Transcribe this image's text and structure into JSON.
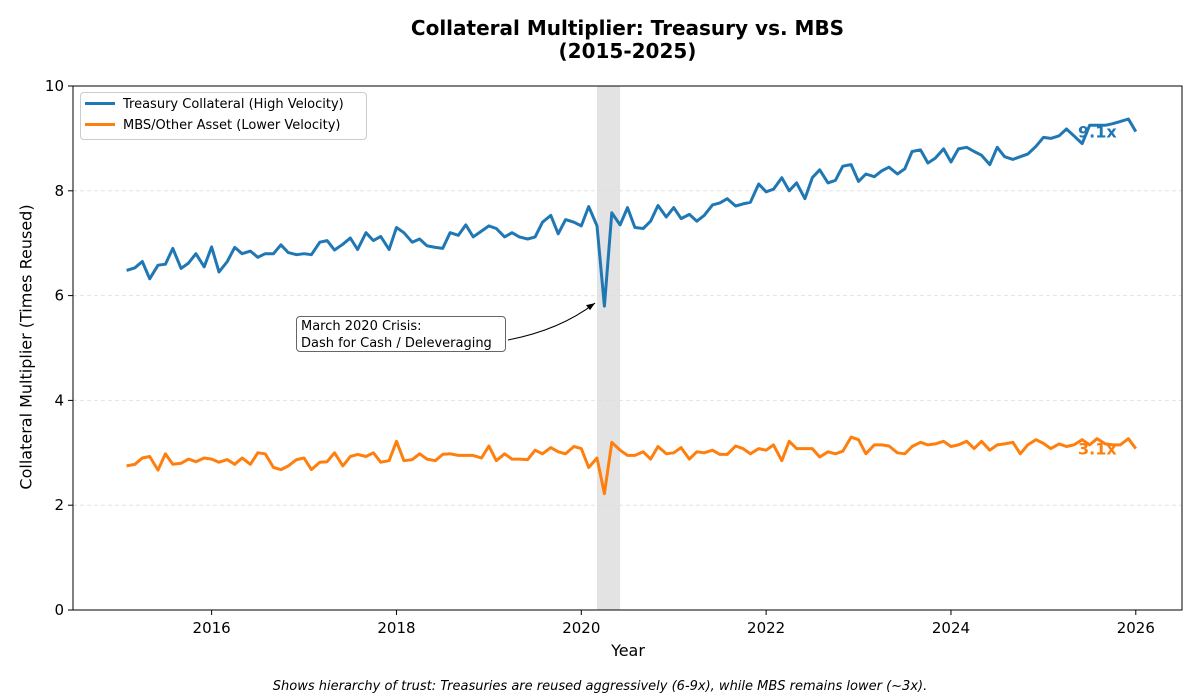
{
  "chart_data": {
    "type": "line",
    "title_line1": "Collateral Multiplier: Treasury vs. MBS",
    "title_line2": "(2015-2025)",
    "xlabel": "Year",
    "ylabel": "Collateral Multiplier (Times Reused)",
    "xlim": [
      2014.5,
      2026.5
    ],
    "ylim": [
      0,
      10
    ],
    "xticks": [
      2016,
      2018,
      2020,
      2022,
      2024,
      2026
    ],
    "yticks": [
      0,
      2,
      4,
      6,
      8,
      10
    ],
    "grid": "y-dashed",
    "legend_position": "top-left",
    "shaded_region": {
      "x_start": 2020.17,
      "x_end": 2020.42,
      "label": "March 2020 crisis window"
    },
    "annotation": {
      "line1": "March 2020 Crisis:",
      "line2": "Dash for Cash / Deleveraging",
      "target": [
        2020.17,
        5.8
      ]
    },
    "caption": "Shows hierarchy of trust: Treasuries are reused aggressively (6-9x), while MBS remains lower (~3x).",
    "x": [
      2015.08,
      2015.17,
      2015.25,
      2015.33,
      2015.42,
      2015.5,
      2015.58,
      2015.67,
      2015.75,
      2015.83,
      2015.92,
      2016.0,
      2016.08,
      2016.17,
      2016.25,
      2016.33,
      2016.42,
      2016.5,
      2016.58,
      2016.67,
      2016.75,
      2016.83,
      2016.92,
      2017.0,
      2017.08,
      2017.17,
      2017.25,
      2017.33,
      2017.42,
      2017.5,
      2017.58,
      2017.67,
      2017.75,
      2017.83,
      2017.92,
      2018.0,
      2018.08,
      2018.17,
      2018.25,
      2018.33,
      2018.42,
      2018.5,
      2018.58,
      2018.67,
      2018.75,
      2018.83,
      2018.92,
      2019.0,
      2019.08,
      2019.17,
      2019.25,
      2019.33,
      2019.42,
      2019.5,
      2019.58,
      2019.67,
      2019.75,
      2019.83,
      2019.92,
      2020.0,
      2020.08,
      2020.17,
      2020.25,
      2020.33,
      2020.42,
      2020.5,
      2020.58,
      2020.67,
      2020.75,
      2020.83,
      2020.92,
      2021.0,
      2021.08,
      2021.17,
      2021.25,
      2021.33,
      2021.42,
      2021.5,
      2021.58,
      2021.67,
      2021.75,
      2021.83,
      2021.92,
      2022.0,
      2022.08,
      2022.17,
      2022.25,
      2022.33,
      2022.42,
      2022.5,
      2022.58,
      2022.67,
      2022.75,
      2022.83,
      2022.92,
      2023.0,
      2023.08,
      2023.17,
      2023.25,
      2023.33,
      2023.42,
      2023.5,
      2023.58,
      2023.67,
      2023.75,
      2023.83,
      2023.92,
      2024.0,
      2024.08,
      2024.17,
      2024.25,
      2024.33,
      2024.42,
      2024.5,
      2024.58,
      2024.67,
      2024.75,
      2024.83,
      2024.92,
      2025.0,
      2025.08,
      2025.17,
      2025.25,
      2025.33,
      2025.42,
      2025.5,
      2025.58,
      2025.67,
      2025.75,
      2025.83,
      2025.92,
      2026.0
    ],
    "series": [
      {
        "name": "Treasury Collateral (High Velocity)",
        "color": "#1f77b4",
        "end_label": "9.1x",
        "values": [
          6.48,
          6.53,
          6.65,
          6.32,
          6.58,
          6.6,
          6.9,
          6.52,
          6.62,
          6.8,
          6.55,
          6.93,
          6.45,
          6.65,
          6.92,
          6.8,
          6.85,
          6.73,
          6.8,
          6.8,
          6.97,
          6.82,
          6.78,
          6.8,
          6.78,
          7.02,
          7.05,
          6.87,
          6.98,
          7.1,
          6.88,
          7.2,
          7.05,
          7.13,
          6.88,
          7.3,
          7.2,
          7.02,
          7.08,
          6.95,
          6.92,
          6.9,
          7.2,
          7.15,
          7.35,
          7.12,
          7.23,
          7.33,
          7.28,
          7.12,
          7.2,
          7.12,
          7.08,
          7.12,
          7.4,
          7.53,
          7.18,
          7.45,
          7.4,
          7.33,
          7.7,
          7.33,
          5.8,
          7.58,
          7.35,
          7.68,
          7.3,
          7.28,
          7.42,
          7.72,
          7.5,
          7.68,
          7.47,
          7.55,
          7.42,
          7.53,
          7.73,
          7.77,
          7.85,
          7.71,
          7.75,
          7.78,
          8.13,
          7.98,
          8.03,
          8.25,
          8.0,
          8.15,
          7.85,
          8.25,
          8.4,
          8.15,
          8.2,
          8.47,
          8.5,
          8.18,
          8.32,
          8.27,
          8.38,
          8.45,
          8.32,
          8.42,
          8.75,
          8.78,
          8.53,
          8.62,
          8.8,
          8.55,
          8.8,
          8.83,
          8.75,
          8.68,
          8.5,
          8.83,
          8.65,
          8.6,
          8.65,
          8.7,
          8.85,
          9.02,
          9.0,
          9.05,
          9.18,
          9.05,
          8.9,
          9.25,
          9.25,
          9.25,
          9.28,
          9.32,
          9.37,
          9.13
        ]
      },
      {
        "name": "MBS/Other Asset (Lower Velocity)",
        "color": "#ff7f0e",
        "end_label": "3.1x",
        "values": [
          2.75,
          2.78,
          2.9,
          2.93,
          2.67,
          2.98,
          2.78,
          2.8,
          2.88,
          2.83,
          2.9,
          2.88,
          2.82,
          2.87,
          2.78,
          2.9,
          2.78,
          3.0,
          2.98,
          2.72,
          2.68,
          2.75,
          2.87,
          2.9,
          2.68,
          2.82,
          2.83,
          3.0,
          2.75,
          2.93,
          2.97,
          2.93,
          3.0,
          2.82,
          2.85,
          3.22,
          2.85,
          2.87,
          2.98,
          2.88,
          2.85,
          2.97,
          2.98,
          2.95,
          2.95,
          2.95,
          2.9,
          3.13,
          2.85,
          2.98,
          2.88,
          2.88,
          2.87,
          3.05,
          2.98,
          3.1,
          3.02,
          2.98,
          3.12,
          3.08,
          2.72,
          2.9,
          2.22,
          3.2,
          3.05,
          2.95,
          2.95,
          3.02,
          2.88,
          3.12,
          2.98,
          3.0,
          3.1,
          2.88,
          3.02,
          3.0,
          3.05,
          2.97,
          2.97,
          3.13,
          3.08,
          2.98,
          3.08,
          3.05,
          3.15,
          2.85,
          3.22,
          3.08,
          3.08,
          3.08,
          2.92,
          3.02,
          2.98,
          3.03,
          3.3,
          3.25,
          2.98,
          3.15,
          3.15,
          3.13,
          3.0,
          2.98,
          3.12,
          3.2,
          3.15,
          3.17,
          3.22,
          3.12,
          3.15,
          3.22,
          3.08,
          3.22,
          3.05,
          3.15,
          3.17,
          3.2,
          2.98,
          3.15,
          3.25,
          3.18,
          3.08,
          3.17,
          3.12,
          3.15,
          3.25,
          3.15,
          3.27,
          3.17,
          3.15,
          3.15,
          3.27,
          3.08
        ]
      }
    ]
  }
}
